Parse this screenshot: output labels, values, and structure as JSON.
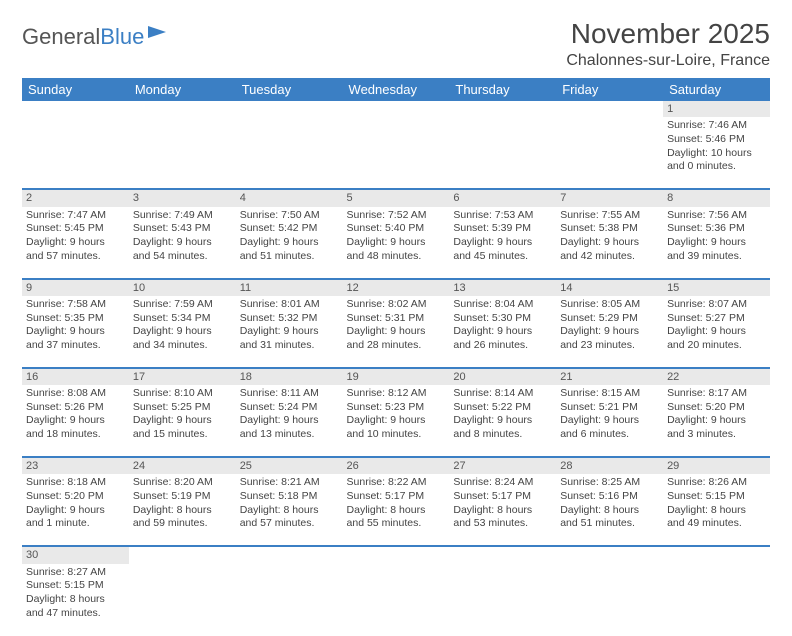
{
  "logo": {
    "text1": "General",
    "text2": "Blue"
  },
  "title": "November 2025",
  "location": "Chalonnes-sur-Loire, France",
  "colors": {
    "header_bg": "#3b7fc4",
    "header_text": "#ffffff",
    "daynum_bg": "#e9e9e9",
    "row_border": "#3b7fc4",
    "text": "#444444"
  },
  "day_headers": [
    "Sunday",
    "Monday",
    "Tuesday",
    "Wednesday",
    "Thursday",
    "Friday",
    "Saturday"
  ],
  "weeks": [
    {
      "nums": [
        "",
        "",
        "",
        "",
        "",
        "",
        "1"
      ],
      "cells": [
        null,
        null,
        null,
        null,
        null,
        null,
        {
          "sunrise": "7:46 AM",
          "sunset": "5:46 PM",
          "daylight": "10 hours and 0 minutes."
        }
      ]
    },
    {
      "nums": [
        "2",
        "3",
        "4",
        "5",
        "6",
        "7",
        "8"
      ],
      "cells": [
        {
          "sunrise": "7:47 AM",
          "sunset": "5:45 PM",
          "daylight": "9 hours and 57 minutes."
        },
        {
          "sunrise": "7:49 AM",
          "sunset": "5:43 PM",
          "daylight": "9 hours and 54 minutes."
        },
        {
          "sunrise": "7:50 AM",
          "sunset": "5:42 PM",
          "daylight": "9 hours and 51 minutes."
        },
        {
          "sunrise": "7:52 AM",
          "sunset": "5:40 PM",
          "daylight": "9 hours and 48 minutes."
        },
        {
          "sunrise": "7:53 AM",
          "sunset": "5:39 PM",
          "daylight": "9 hours and 45 minutes."
        },
        {
          "sunrise": "7:55 AM",
          "sunset": "5:38 PM",
          "daylight": "9 hours and 42 minutes."
        },
        {
          "sunrise": "7:56 AM",
          "sunset": "5:36 PM",
          "daylight": "9 hours and 39 minutes."
        }
      ]
    },
    {
      "nums": [
        "9",
        "10",
        "11",
        "12",
        "13",
        "14",
        "15"
      ],
      "cells": [
        {
          "sunrise": "7:58 AM",
          "sunset": "5:35 PM",
          "daylight": "9 hours and 37 minutes."
        },
        {
          "sunrise": "7:59 AM",
          "sunset": "5:34 PM",
          "daylight": "9 hours and 34 minutes."
        },
        {
          "sunrise": "8:01 AM",
          "sunset": "5:32 PM",
          "daylight": "9 hours and 31 minutes."
        },
        {
          "sunrise": "8:02 AM",
          "sunset": "5:31 PM",
          "daylight": "9 hours and 28 minutes."
        },
        {
          "sunrise": "8:04 AM",
          "sunset": "5:30 PM",
          "daylight": "9 hours and 26 minutes."
        },
        {
          "sunrise": "8:05 AM",
          "sunset": "5:29 PM",
          "daylight": "9 hours and 23 minutes."
        },
        {
          "sunrise": "8:07 AM",
          "sunset": "5:27 PM",
          "daylight": "9 hours and 20 minutes."
        }
      ]
    },
    {
      "nums": [
        "16",
        "17",
        "18",
        "19",
        "20",
        "21",
        "22"
      ],
      "cells": [
        {
          "sunrise": "8:08 AM",
          "sunset": "5:26 PM",
          "daylight": "9 hours and 18 minutes."
        },
        {
          "sunrise": "8:10 AM",
          "sunset": "5:25 PM",
          "daylight": "9 hours and 15 minutes."
        },
        {
          "sunrise": "8:11 AM",
          "sunset": "5:24 PM",
          "daylight": "9 hours and 13 minutes."
        },
        {
          "sunrise": "8:12 AM",
          "sunset": "5:23 PM",
          "daylight": "9 hours and 10 minutes."
        },
        {
          "sunrise": "8:14 AM",
          "sunset": "5:22 PM",
          "daylight": "9 hours and 8 minutes."
        },
        {
          "sunrise": "8:15 AM",
          "sunset": "5:21 PM",
          "daylight": "9 hours and 6 minutes."
        },
        {
          "sunrise": "8:17 AM",
          "sunset": "5:20 PM",
          "daylight": "9 hours and 3 minutes."
        }
      ]
    },
    {
      "nums": [
        "23",
        "24",
        "25",
        "26",
        "27",
        "28",
        "29"
      ],
      "cells": [
        {
          "sunrise": "8:18 AM",
          "sunset": "5:20 PM",
          "daylight": "9 hours and 1 minute."
        },
        {
          "sunrise": "8:20 AM",
          "sunset": "5:19 PM",
          "daylight": "8 hours and 59 minutes."
        },
        {
          "sunrise": "8:21 AM",
          "sunset": "5:18 PM",
          "daylight": "8 hours and 57 minutes."
        },
        {
          "sunrise": "8:22 AM",
          "sunset": "5:17 PM",
          "daylight": "8 hours and 55 minutes."
        },
        {
          "sunrise": "8:24 AM",
          "sunset": "5:17 PM",
          "daylight": "8 hours and 53 minutes."
        },
        {
          "sunrise": "8:25 AM",
          "sunset": "5:16 PM",
          "daylight": "8 hours and 51 minutes."
        },
        {
          "sunrise": "8:26 AM",
          "sunset": "5:15 PM",
          "daylight": "8 hours and 49 minutes."
        }
      ]
    },
    {
      "nums": [
        "30",
        "",
        "",
        "",
        "",
        "",
        ""
      ],
      "cells": [
        {
          "sunrise": "8:27 AM",
          "sunset": "5:15 PM",
          "daylight": "8 hours and 47 minutes."
        },
        null,
        null,
        null,
        null,
        null,
        null
      ]
    }
  ],
  "labels": {
    "sunrise": "Sunrise:",
    "sunset": "Sunset:",
    "daylight": "Daylight:"
  }
}
